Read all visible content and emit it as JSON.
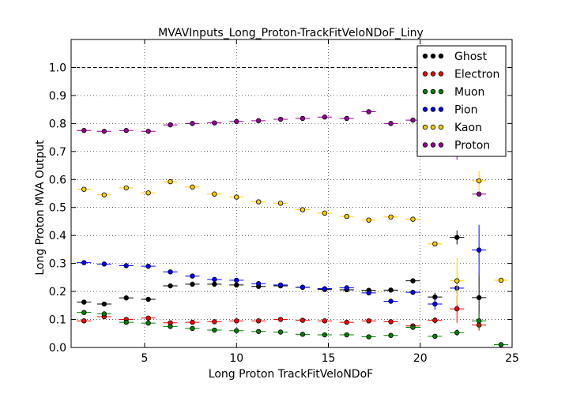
{
  "chart_data": {
    "type": "scatter",
    "title": "MVAVInputs_Long_Proton-TrackFitVeloNDoF_Liny",
    "xlabel": "Long Proton TrackFitVeloNDoF",
    "ylabel": "Long Proton MVA Output",
    "xlim": [
      1,
      25
    ],
    "ylim": [
      0.0,
      1.1
    ],
    "xticks": [
      "5",
      "10",
      "15",
      "20",
      "25"
    ],
    "yticks": [
      "0.0",
      "0.1",
      "0.2",
      "0.3",
      "0.4",
      "0.5",
      "0.6",
      "0.7",
      "0.8",
      "0.9",
      "1.0"
    ],
    "xtick_values": [
      5,
      10,
      15,
      20,
      25
    ],
    "ytick_values": [
      0.0,
      0.1,
      0.2,
      0.3,
      0.4,
      0.5,
      0.6,
      0.7,
      0.8,
      0.9,
      1.0
    ],
    "grid": true,
    "reference_line": 1.0,
    "legend_position": "top-right",
    "bin_halfwidth": 0.39,
    "series": [
      {
        "name": "Ghost",
        "color": "#000000",
        "points": [
          {
            "x": 1.7,
            "y": 0.162
          },
          {
            "x": 2.8,
            "y": 0.155
          },
          {
            "x": 4.0,
            "y": 0.177
          },
          {
            "x": 5.2,
            "y": 0.172
          },
          {
            "x": 6.4,
            "y": 0.22
          },
          {
            "x": 7.6,
            "y": 0.226
          },
          {
            "x": 8.8,
            "y": 0.226
          },
          {
            "x": 10.0,
            "y": 0.223
          },
          {
            "x": 11.2,
            "y": 0.218
          },
          {
            "x": 12.4,
            "y": 0.22
          },
          {
            "x": 13.6,
            "y": 0.215
          },
          {
            "x": 14.8,
            "y": 0.207
          },
          {
            "x": 16.0,
            "y": 0.206
          },
          {
            "x": 17.2,
            "y": 0.204
          },
          {
            "x": 18.4,
            "y": 0.205
          },
          {
            "x": 19.6,
            "y": 0.238
          },
          {
            "x": 20.8,
            "y": 0.18,
            "err": 0.015
          },
          {
            "x": 22.0,
            "y": 0.393,
            "err": 0.025
          },
          {
            "x": 23.2,
            "y": 0.178,
            "err": 0.08
          }
        ]
      },
      {
        "name": "Electron",
        "color": "#ff0000",
        "points": [
          {
            "x": 1.7,
            "y": 0.095
          },
          {
            "x": 2.8,
            "y": 0.11
          },
          {
            "x": 4.0,
            "y": 0.1
          },
          {
            "x": 5.2,
            "y": 0.105
          },
          {
            "x": 6.4,
            "y": 0.088
          },
          {
            "x": 7.6,
            "y": 0.09
          },
          {
            "x": 8.8,
            "y": 0.092
          },
          {
            "x": 10.0,
            "y": 0.095
          },
          {
            "x": 11.2,
            "y": 0.095
          },
          {
            "x": 12.4,
            "y": 0.1
          },
          {
            "x": 13.6,
            "y": 0.097
          },
          {
            "x": 14.8,
            "y": 0.095
          },
          {
            "x": 16.0,
            "y": 0.09
          },
          {
            "x": 17.2,
            "y": 0.095
          },
          {
            "x": 18.4,
            "y": 0.092
          },
          {
            "x": 19.6,
            "y": 0.077
          },
          {
            "x": 20.8,
            "y": 0.097,
            "err": 0.012
          },
          {
            "x": 22.0,
            "y": 0.138,
            "err": 0.05
          },
          {
            "x": 23.2,
            "y": 0.08,
            "err": 0.02
          }
        ]
      },
      {
        "name": "Muon",
        "color": "#008000",
        "points": [
          {
            "x": 1.7,
            "y": 0.125
          },
          {
            "x": 2.8,
            "y": 0.12
          },
          {
            "x": 4.0,
            "y": 0.09
          },
          {
            "x": 5.2,
            "y": 0.087
          },
          {
            "x": 6.4,
            "y": 0.075
          },
          {
            "x": 7.6,
            "y": 0.068
          },
          {
            "x": 8.8,
            "y": 0.062
          },
          {
            "x": 10.0,
            "y": 0.06
          },
          {
            "x": 11.2,
            "y": 0.057
          },
          {
            "x": 12.4,
            "y": 0.055
          },
          {
            "x": 13.6,
            "y": 0.047
          },
          {
            "x": 14.8,
            "y": 0.045
          },
          {
            "x": 16.0,
            "y": 0.045
          },
          {
            "x": 17.2,
            "y": 0.038
          },
          {
            "x": 18.4,
            "y": 0.043
          },
          {
            "x": 19.6,
            "y": 0.072
          },
          {
            "x": 20.8,
            "y": 0.04
          },
          {
            "x": 22.0,
            "y": 0.053,
            "err": 0.012
          },
          {
            "x": 23.2,
            "y": 0.095,
            "err": 0.03
          },
          {
            "x": 24.4,
            "y": 0.01
          }
        ]
      },
      {
        "name": "Pion",
        "color": "#0000ff",
        "points": [
          {
            "x": 1.7,
            "y": 0.303
          },
          {
            "x": 2.8,
            "y": 0.298
          },
          {
            "x": 4.0,
            "y": 0.292
          },
          {
            "x": 5.2,
            "y": 0.29
          },
          {
            "x": 6.4,
            "y": 0.27
          },
          {
            "x": 7.6,
            "y": 0.255
          },
          {
            "x": 8.8,
            "y": 0.243
          },
          {
            "x": 10.0,
            "y": 0.24
          },
          {
            "x": 11.2,
            "y": 0.228
          },
          {
            "x": 12.4,
            "y": 0.223
          },
          {
            "x": 13.6,
            "y": 0.215
          },
          {
            "x": 14.8,
            "y": 0.21
          },
          {
            "x": 16.0,
            "y": 0.213
          },
          {
            "x": 17.2,
            "y": 0.195
          },
          {
            "x": 18.4,
            "y": 0.165
          },
          {
            "x": 19.6,
            "y": 0.197
          },
          {
            "x": 20.8,
            "y": 0.155,
            "err": 0.02
          },
          {
            "x": 22.0,
            "y": 0.212,
            "err": 0.02
          },
          {
            "x": 23.2,
            "y": 0.348,
            "err": 0.09
          }
        ]
      },
      {
        "name": "Kaon",
        "color": "#ffcc00",
        "points": [
          {
            "x": 1.7,
            "y": 0.565
          },
          {
            "x": 2.8,
            "y": 0.545
          },
          {
            "x": 4.0,
            "y": 0.57
          },
          {
            "x": 5.2,
            "y": 0.552
          },
          {
            "x": 6.4,
            "y": 0.592
          },
          {
            "x": 7.6,
            "y": 0.573
          },
          {
            "x": 8.8,
            "y": 0.548
          },
          {
            "x": 10.0,
            "y": 0.537
          },
          {
            "x": 11.2,
            "y": 0.52
          },
          {
            "x": 12.4,
            "y": 0.515
          },
          {
            "x": 13.6,
            "y": 0.492
          },
          {
            "x": 14.8,
            "y": 0.48
          },
          {
            "x": 16.0,
            "y": 0.468
          },
          {
            "x": 17.2,
            "y": 0.455
          },
          {
            "x": 18.4,
            "y": 0.466
          },
          {
            "x": 19.6,
            "y": 0.458
          },
          {
            "x": 20.8,
            "y": 0.37
          },
          {
            "x": 22.0,
            "y": 0.238,
            "err": 0.085
          },
          {
            "x": 23.2,
            "y": 0.595,
            "err": 0.035
          },
          {
            "x": 24.4,
            "y": 0.24
          }
        ]
      },
      {
        "name": "Proton",
        "color": "#990099",
        "points": [
          {
            "x": 1.7,
            "y": 0.775
          },
          {
            "x": 2.8,
            "y": 0.772
          },
          {
            "x": 4.0,
            "y": 0.775
          },
          {
            "x": 5.2,
            "y": 0.772
          },
          {
            "x": 6.4,
            "y": 0.795
          },
          {
            "x": 7.6,
            "y": 0.8
          },
          {
            "x": 8.8,
            "y": 0.802
          },
          {
            "x": 10.0,
            "y": 0.807
          },
          {
            "x": 11.2,
            "y": 0.81
          },
          {
            "x": 12.4,
            "y": 0.815
          },
          {
            "x": 13.6,
            "y": 0.818
          },
          {
            "x": 14.8,
            "y": 0.823
          },
          {
            "x": 16.0,
            "y": 0.818
          },
          {
            "x": 17.2,
            "y": 0.842
          },
          {
            "x": 18.4,
            "y": 0.8
          },
          {
            "x": 19.6,
            "y": 0.812
          },
          {
            "x": 22.0,
            "y": 0.7,
            "err": 0.03
          },
          {
            "x": 23.2,
            "y": 0.548
          }
        ]
      }
    ]
  }
}
